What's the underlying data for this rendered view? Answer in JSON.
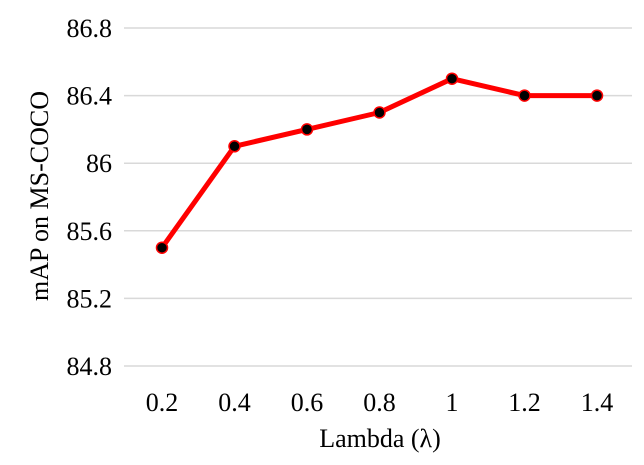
{
  "chart_data": {
    "type": "line",
    "title": "",
    "xlabel": "Lambda (λ)",
    "ylabel": "mAP on MS-COCO",
    "categories": [
      "0.2",
      "0.4",
      "0.6",
      "0.8",
      "1",
      "1.2",
      "1.4"
    ],
    "y_ticks": [
      "84.8",
      "85.2",
      "85.6",
      "86",
      "86.4",
      "86.8"
    ],
    "ylim": [
      84.8,
      86.8
    ],
    "grid": true,
    "legend": "none",
    "series": [
      {
        "values": [
          85.5,
          86.1,
          86.2,
          86.3,
          86.5,
          86.4,
          86.4
        ],
        "line_color": "#ff0000",
        "marker_color": "#000000"
      }
    ]
  }
}
